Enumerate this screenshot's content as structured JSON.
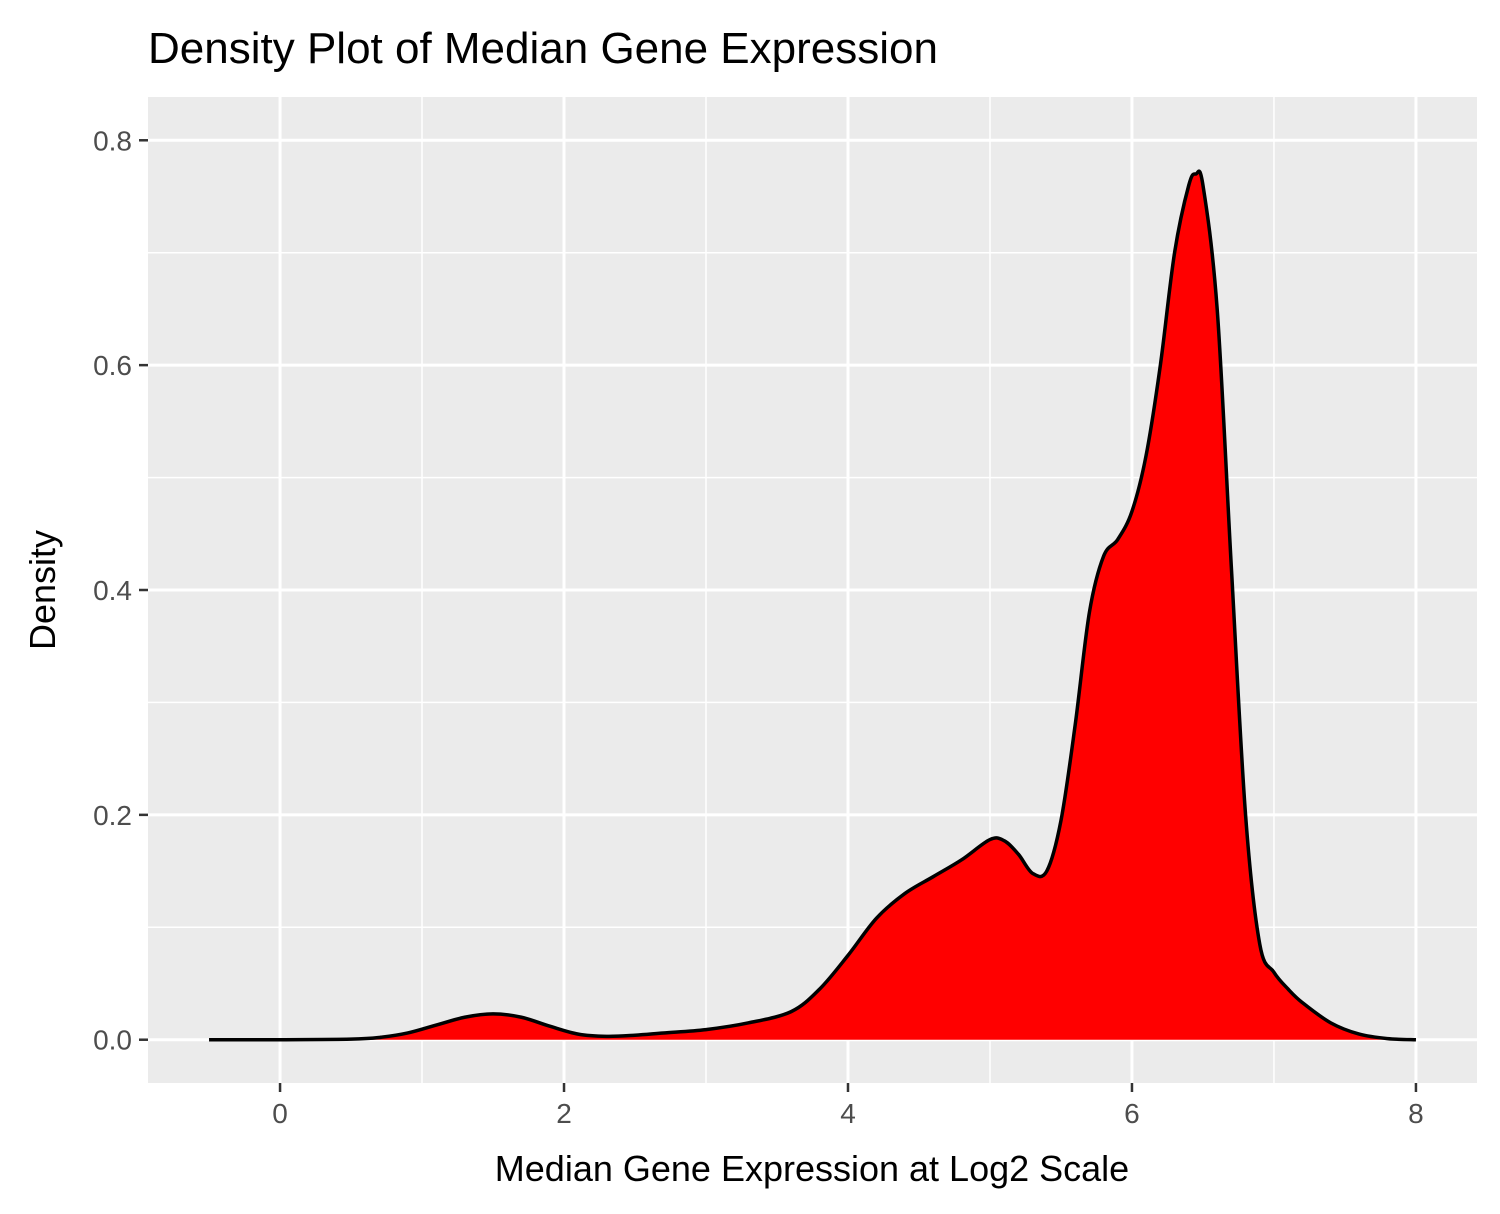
{
  "chart_data": {
    "type": "area",
    "title": "Density Plot of Median Gene Expression",
    "xlabel": "Median Gene Expression at Log2 Scale",
    "ylabel": "Density",
    "xlim": [
      -0.93,
      8.43
    ],
    "ylim": [
      -0.0385,
      0.8385
    ],
    "x_major_ticks": [
      0,
      2,
      4,
      6,
      8
    ],
    "x_minor_ticks": [
      1,
      3,
      5,
      7
    ],
    "y_major_ticks": [
      0.0,
      0.2,
      0.4,
      0.6,
      0.8
    ],
    "y_minor_ticks": [
      0.1,
      0.3,
      0.5,
      0.7
    ],
    "x_tick_labels": [
      "0",
      "2",
      "4",
      "6",
      "8"
    ],
    "y_tick_labels": [
      "0.0",
      "0.2",
      "0.4",
      "0.6",
      "0.8"
    ],
    "grid": true,
    "legend": "none",
    "fill_color": "#ff0000",
    "line_color": "#000000",
    "panel_color": "#ebebeb",
    "series": [
      {
        "x": [
          -0.5,
          0.0,
          0.5,
          0.7,
          0.9,
          1.1,
          1.3,
          1.5,
          1.7,
          1.9,
          2.1,
          2.3,
          2.5,
          2.7,
          3.0,
          3.3,
          3.6,
          3.8,
          4.0,
          4.2,
          4.4,
          4.6,
          4.8,
          5.0,
          5.1,
          5.2,
          5.3,
          5.4,
          5.5,
          5.6,
          5.7,
          5.8,
          5.9,
          6.0,
          6.1,
          6.2,
          6.3,
          6.4,
          6.45,
          6.5,
          6.6,
          6.7,
          6.8,
          6.9,
          7.0,
          7.1,
          7.2,
          7.4,
          7.6,
          7.8,
          8.0
        ],
        "y": [
          0.0,
          0.0,
          0.0005,
          0.002,
          0.006,
          0.013,
          0.02,
          0.023,
          0.02,
          0.012,
          0.005,
          0.003,
          0.004,
          0.006,
          0.009,
          0.015,
          0.025,
          0.045,
          0.075,
          0.108,
          0.13,
          0.145,
          0.16,
          0.178,
          0.177,
          0.165,
          0.148,
          0.15,
          0.195,
          0.28,
          0.38,
          0.43,
          0.445,
          0.47,
          0.52,
          0.6,
          0.7,
          0.76,
          0.77,
          0.76,
          0.65,
          0.42,
          0.2,
          0.085,
          0.06,
          0.045,
          0.033,
          0.015,
          0.005,
          0.001,
          0.0
        ]
      }
    ]
  }
}
